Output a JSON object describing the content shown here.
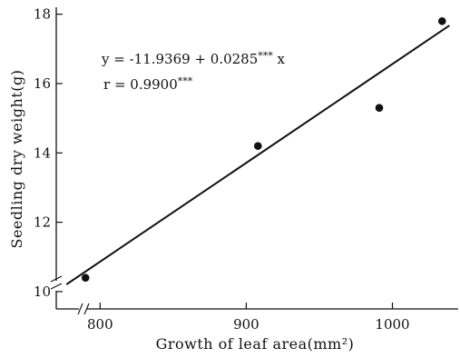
{
  "chart_data": {
    "type": "scatter",
    "xlabel": "Growth of leaf area(mm²)",
    "ylabel": "Seedling dry weight(g)",
    "xlim": [
      770,
      1045
    ],
    "ylim": [
      9.5,
      18.2
    ],
    "xticks": [
      800,
      900,
      1000
    ],
    "yticks": [
      10,
      12,
      14,
      16,
      18
    ],
    "x_ticklabels": [
      "800",
      "900",
      "1000"
    ],
    "y_ticklabels": [
      "10",
      "12",
      "14",
      "16",
      "18"
    ],
    "axis_breaks": true,
    "grid": false,
    "series": [
      {
        "points": [
          {
            "x": 790,
            "y": 10.4
          },
          {
            "x": 908,
            "y": 14.2
          },
          {
            "x": 991,
            "y": 15.3
          },
          {
            "x": 1034,
            "y": 17.8
          }
        ]
      }
    ],
    "regression": {
      "intercept": -11.9369,
      "slope": 0.0285,
      "x_range": [
        777,
        1039
      ],
      "equation_label": "y = -11.9369 + 0.0285",
      "equation_sig": "***",
      "equation_var": " x",
      "r_label": "r = 0.9900",
      "r_sig": "***"
    }
  }
}
